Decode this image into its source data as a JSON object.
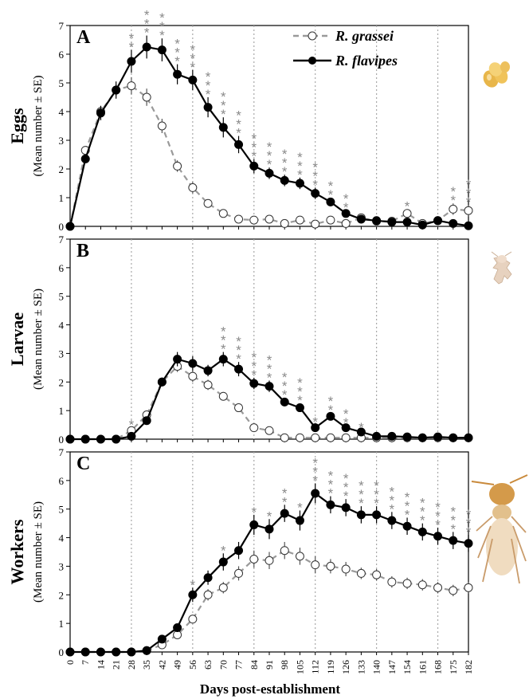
{
  "figure": {
    "xlabel": "Days post-establishment",
    "legend": [
      {
        "name": "R. grassei",
        "color": "#9a9a9a",
        "marker": "open-circle",
        "dash": true
      },
      {
        "name": "R. flavipes",
        "color": "#000000",
        "marker": "filled-circle",
        "dash": false
      }
    ],
    "icons": [
      "eggs-cluster-icon",
      "larva-icon",
      "worker-termite-icon"
    ]
  },
  "chart_data": [
    {
      "panel": "A",
      "type": "line",
      "ylabel_main": "Eggs",
      "ylabel_sub": "(Mean  number ± SE)",
      "x": [
        0,
        7,
        14,
        21,
        28,
        35,
        42,
        49,
        56,
        63,
        70,
        77,
        84,
        91,
        98,
        105,
        112,
        119,
        126,
        133,
        140,
        147,
        154,
        161,
        168,
        175,
        182
      ],
      "ylim": [
        0,
        7
      ],
      "yticks": [
        0,
        1,
        2,
        3,
        4,
        5,
        6,
        7
      ],
      "vlines": [
        28,
        56,
        84,
        112,
        140,
        168
      ],
      "series": [
        {
          "name": "R. grassei",
          "values": [
            0,
            2.65,
            4.0,
            4.75,
            4.9,
            4.5,
            3.5,
            2.1,
            1.35,
            0.8,
            0.45,
            0.25,
            0.22,
            0.25,
            0.1,
            0.22,
            0.08,
            0.22,
            0.1,
            0.3,
            0.18,
            0.18,
            0.45,
            0.1,
            0.2,
            0.6,
            0.55
          ],
          "se": [
            0,
            0.15,
            0.2,
            0.2,
            0.3,
            0.3,
            0.25,
            0.2,
            0.2,
            0.12,
            0.1,
            0.1,
            0.08,
            0.1,
            0.05,
            0.1,
            0.05,
            0.1,
            0.05,
            0.1,
            0.08,
            0.08,
            0.15,
            0.05,
            0.1,
            0.2,
            0.2
          ]
        },
        {
          "name": "R. flavipes",
          "values": [
            0,
            2.35,
            3.95,
            4.75,
            5.75,
            6.25,
            6.15,
            5.3,
            5.1,
            4.15,
            3.45,
            2.85,
            2.1,
            1.85,
            1.6,
            1.5,
            1.15,
            0.85,
            0.45,
            0.25,
            0.2,
            0.15,
            0.15,
            0.05,
            0.2,
            0.1,
            0.02
          ],
          "se": [
            0,
            0.15,
            0.25,
            0.3,
            0.4,
            0.4,
            0.4,
            0.35,
            0.35,
            0.35,
            0.35,
            0.3,
            0.25,
            0.2,
            0.2,
            0.2,
            0.2,
            0.15,
            0.1,
            0.05,
            0.05,
            0.05,
            0.05,
            0.03,
            0.05,
            0.05,
            0.02
          ]
        }
      ],
      "significance": [
        {
          "x": 28,
          "label": "**"
        },
        {
          "x": 35,
          "label": "***"
        },
        {
          "x": 42,
          "label": "***"
        },
        {
          "x": 49,
          "label": "***"
        },
        {
          "x": 56,
          "label": "***"
        },
        {
          "x": 63,
          "label": "***"
        },
        {
          "x": 70,
          "label": "***"
        },
        {
          "x": 77,
          "label": "***"
        },
        {
          "x": 84,
          "label": "***"
        },
        {
          "x": 91,
          "label": "***"
        },
        {
          "x": 98,
          "label": "***"
        },
        {
          "x": 105,
          "label": "***"
        },
        {
          "x": 112,
          "label": "***"
        },
        {
          "x": 119,
          "label": "**"
        },
        {
          "x": 126,
          "label": "**"
        },
        {
          "x": 154,
          "label": "*"
        },
        {
          "x": 175,
          "label": "**"
        },
        {
          "x": 182,
          "label": "***"
        }
      ]
    },
    {
      "panel": "B",
      "type": "line",
      "ylabel_main": "Larvae",
      "ylabel_sub": "(Mean  number ± SE)",
      "x": [
        0,
        7,
        14,
        21,
        28,
        35,
        42,
        49,
        56,
        63,
        70,
        77,
        84,
        91,
        98,
        105,
        112,
        119,
        126,
        133,
        140,
        147,
        154,
        161,
        168,
        175,
        182
      ],
      "ylim": [
        0,
        7
      ],
      "yticks": [
        0,
        1,
        2,
        3,
        4,
        5,
        6,
        7
      ],
      "vlines": [
        28,
        56,
        84,
        112,
        140,
        168
      ],
      "series": [
        {
          "name": "R. grassei",
          "values": [
            0,
            0,
            0,
            0,
            0.3,
            0.85,
            2.0,
            2.55,
            2.2,
            1.9,
            1.5,
            1.1,
            0.4,
            0.3,
            0.05,
            0.05,
            0.05,
            0.05,
            0.05,
            0.05,
            0.05,
            0.05,
            0.05,
            0.05,
            0.05,
            0.05,
            0.05
          ],
          "se": [
            0,
            0,
            0,
            0,
            0.1,
            0.12,
            0.15,
            0.2,
            0.2,
            0.18,
            0.15,
            0.12,
            0.08,
            0.08,
            0.03,
            0.03,
            0.03,
            0.03,
            0.03,
            0.03,
            0.03,
            0.03,
            0.03,
            0.03,
            0.03,
            0.03,
            0.03
          ]
        },
        {
          "name": "R. flavipes",
          "values": [
            0,
            0,
            0,
            0,
            0.1,
            0.65,
            2.0,
            2.8,
            2.65,
            2.4,
            2.8,
            2.45,
            1.95,
            1.85,
            1.3,
            1.1,
            0.4,
            0.8,
            0.4,
            0.25,
            0.1,
            0.1,
            0.08,
            0.05,
            0.08,
            0.05,
            0.05
          ],
          "se": [
            0,
            0,
            0,
            0,
            0.05,
            0.12,
            0.15,
            0.25,
            0.25,
            0.2,
            0.25,
            0.25,
            0.2,
            0.2,
            0.15,
            0.15,
            0.1,
            0.12,
            0.08,
            0.05,
            0.04,
            0.04,
            0.03,
            0.03,
            0.03,
            0.03,
            0.03
          ]
        }
      ],
      "significance": [
        {
          "x": 28,
          "label": "*"
        },
        {
          "x": 70,
          "label": "***"
        },
        {
          "x": 77,
          "label": "***"
        },
        {
          "x": 84,
          "label": "***"
        },
        {
          "x": 91,
          "label": "***"
        },
        {
          "x": 98,
          "label": "***"
        },
        {
          "x": 105,
          "label": "***"
        },
        {
          "x": 112,
          "label": "*"
        },
        {
          "x": 119,
          "label": "**"
        },
        {
          "x": 126,
          "label": "**"
        },
        {
          "x": 133,
          "label": "*"
        }
      ]
    },
    {
      "panel": "C",
      "type": "line",
      "ylabel_main": "Workers",
      "ylabel_sub": "(Mean  number ± SE)",
      "x": [
        0,
        7,
        14,
        21,
        28,
        35,
        42,
        49,
        56,
        63,
        70,
        77,
        84,
        91,
        98,
        105,
        112,
        119,
        126,
        133,
        140,
        147,
        154,
        161,
        168,
        175,
        182
      ],
      "xticks": [
        "0",
        "7",
        "14",
        "21",
        "28",
        "35",
        "42",
        "49",
        "56",
        "63",
        "70",
        "77",
        "84",
        "91",
        "98",
        "105",
        "112",
        "119",
        "126",
        "133",
        "140",
        "147",
        "154",
        "161",
        "168",
        "175",
        "182"
      ],
      "ylim": [
        0,
        7
      ],
      "yticks": [
        0,
        1,
        2,
        3,
        4,
        5,
        6,
        7
      ],
      "vlines": [
        28,
        56,
        84,
        112,
        140,
        168
      ],
      "series": [
        {
          "name": "R. grassei",
          "values": [
            0,
            0,
            0,
            0,
            0,
            0.05,
            0.25,
            0.6,
            1.15,
            2.0,
            2.25,
            2.75,
            3.25,
            3.2,
            3.55,
            3.35,
            3.05,
            3.0,
            2.9,
            2.75,
            2.7,
            2.45,
            2.4,
            2.35,
            2.25,
            2.15,
            2.25
          ],
          "se": [
            0,
            0,
            0,
            0,
            0,
            0.03,
            0.08,
            0.12,
            0.15,
            0.2,
            0.2,
            0.25,
            0.3,
            0.3,
            0.3,
            0.3,
            0.3,
            0.25,
            0.25,
            0.2,
            0.2,
            0.2,
            0.2,
            0.2,
            0.2,
            0.2,
            0.2
          ]
        },
        {
          "name": "R. flavipes",
          "values": [
            0,
            0,
            0,
            0,
            0,
            0.05,
            0.45,
            0.85,
            2.0,
            2.6,
            3.15,
            3.55,
            4.45,
            4.3,
            4.85,
            4.6,
            5.55,
            5.15,
            5.05,
            4.8,
            4.8,
            4.6,
            4.4,
            4.2,
            4.05,
            3.9,
            3.8
          ],
          "se": [
            0,
            0,
            0,
            0,
            0,
            0.03,
            0.1,
            0.15,
            0.25,
            0.25,
            0.3,
            0.3,
            0.35,
            0.35,
            0.3,
            0.35,
            0.35,
            0.3,
            0.3,
            0.3,
            0.3,
            0.3,
            0.3,
            0.3,
            0.3,
            0.3,
            0.3
          ]
        }
      ],
      "significance": [
        {
          "x": 56,
          "label": "*"
        },
        {
          "x": 70,
          "label": "*"
        },
        {
          "x": 84,
          "label": "*"
        },
        {
          "x": 91,
          "label": "*"
        },
        {
          "x": 98,
          "label": "**"
        },
        {
          "x": 105,
          "label": "*"
        },
        {
          "x": 112,
          "label": "***"
        },
        {
          "x": 119,
          "label": "***"
        },
        {
          "x": 126,
          "label": "***"
        },
        {
          "x": 133,
          "label": "***"
        },
        {
          "x": 140,
          "label": "***"
        },
        {
          "x": 147,
          "label": "***"
        },
        {
          "x": 154,
          "label": "***"
        },
        {
          "x": 161,
          "label": "***"
        },
        {
          "x": 168,
          "label": "***"
        },
        {
          "x": 175,
          "label": "***"
        },
        {
          "x": 182,
          "label": "***"
        }
      ]
    }
  ]
}
